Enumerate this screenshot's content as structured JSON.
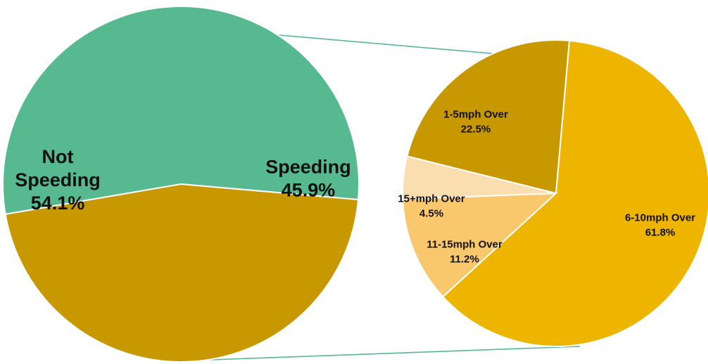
{
  "chart_data": [
    {
      "type": "pie",
      "slices": [
        {
          "label_lines": [
            "Not",
            "Speeding"
          ],
          "value_label": "54.1%",
          "value": 54.1,
          "color": "#56b990"
        },
        {
          "label_lines": [
            "Speeding"
          ],
          "value_label": "45.9%",
          "value": 45.9,
          "color": "#c89800"
        }
      ]
    },
    {
      "type": "pie",
      "slices": [
        {
          "label_lines": [
            "6-10mph Over"
          ],
          "value_label": "61.8%",
          "value": 61.8,
          "color": "#edb400"
        },
        {
          "label_lines": [
            "11-15mph Over"
          ],
          "value_label": "11.2%",
          "value": 11.2,
          "color": "#f9c86c"
        },
        {
          "label_lines": [
            "15+mph Over"
          ],
          "value_label": "4.5%",
          "value": 4.5,
          "color": "#fbdeb0"
        },
        {
          "label_lines": [
            "1-5mph Over"
          ],
          "value_label": "22.5%",
          "value": 22.5,
          "color": "#c89800"
        }
      ]
    }
  ],
  "connector_color": "#56b990"
}
